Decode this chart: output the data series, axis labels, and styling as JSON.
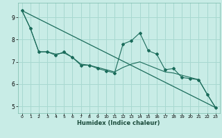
{
  "xlabel": "Humidex (Indice chaleur)",
  "bg_color": "#c8ece6",
  "grid_color": "#a8d8d0",
  "line_color": "#1a6b5a",
  "xlim": [
    -0.5,
    23.5
  ],
  "ylim": [
    4.7,
    9.65
  ],
  "xticks": [
    0,
    1,
    2,
    3,
    4,
    5,
    6,
    7,
    8,
    9,
    10,
    11,
    12,
    13,
    14,
    15,
    16,
    17,
    18,
    19,
    20,
    21,
    22,
    23
  ],
  "yticks": [
    5,
    6,
    7,
    8,
    9
  ],
  "data_points": [
    [
      0,
      9.3
    ],
    [
      1,
      8.5
    ],
    [
      2,
      7.45
    ],
    [
      3,
      7.45
    ],
    [
      4,
      7.3
    ],
    [
      5,
      7.45
    ],
    [
      6,
      7.2
    ],
    [
      7,
      6.85
    ],
    [
      8,
      6.85
    ],
    [
      9,
      6.7
    ],
    [
      10,
      6.6
    ],
    [
      11,
      6.5
    ],
    [
      12,
      7.8
    ],
    [
      13,
      7.95
    ],
    [
      14,
      8.3
    ],
    [
      15,
      7.5
    ],
    [
      16,
      7.35
    ],
    [
      17,
      6.65
    ],
    [
      18,
      6.7
    ],
    [
      19,
      6.3
    ],
    [
      20,
      6.25
    ],
    [
      21,
      6.2
    ],
    [
      22,
      5.55
    ],
    [
      23,
      4.95
    ]
  ],
  "trend_line": [
    [
      0,
      9.3
    ],
    [
      23,
      4.95
    ]
  ],
  "smooth_line": [
    [
      0,
      9.3
    ],
    [
      1,
      8.5
    ],
    [
      2,
      7.45
    ],
    [
      3,
      7.45
    ],
    [
      4,
      7.35
    ],
    [
      5,
      7.4
    ],
    [
      6,
      7.2
    ],
    [
      7,
      6.9
    ],
    [
      8,
      6.85
    ],
    [
      9,
      6.75
    ],
    [
      10,
      6.65
    ],
    [
      11,
      6.55
    ],
    [
      12,
      6.75
    ],
    [
      13,
      6.9
    ],
    [
      14,
      7.0
    ],
    [
      15,
      6.85
    ],
    [
      16,
      6.7
    ],
    [
      17,
      6.55
    ],
    [
      18,
      6.5
    ],
    [
      19,
      6.4
    ],
    [
      20,
      6.3
    ],
    [
      21,
      6.2
    ],
    [
      22,
      5.55
    ],
    [
      23,
      4.95
    ]
  ]
}
